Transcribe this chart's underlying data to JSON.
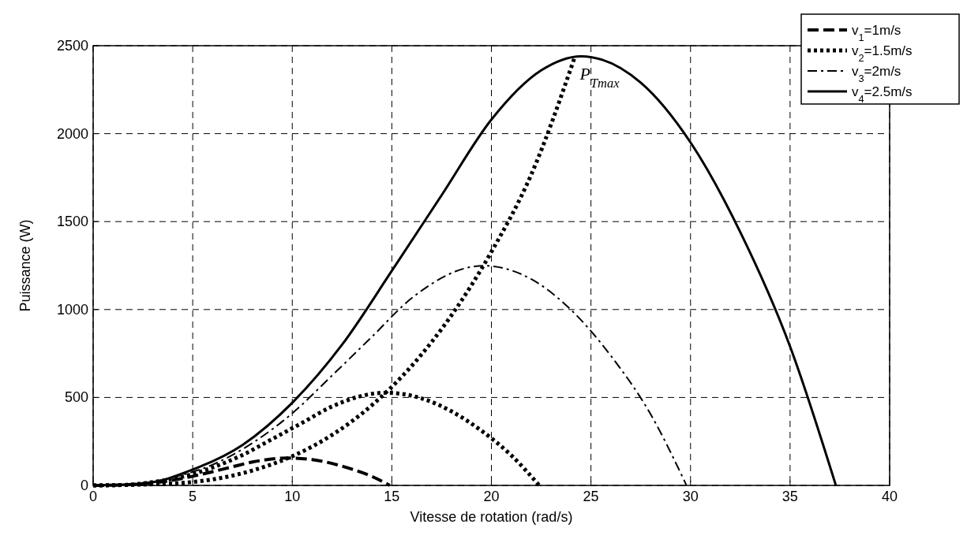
{
  "chart_data": {
    "type": "line",
    "xlabel": "Vitesse de rotation (rad/s)",
    "ylabel": "Puissance (W)",
    "xlim": [
      0,
      40
    ],
    "xticks": [
      0,
      5,
      10,
      15,
      20,
      25,
      30,
      35,
      40
    ],
    "ylim": [
      0,
      2500
    ],
    "yticks": [
      0,
      500,
      1000,
      1500,
      2000,
      2500
    ],
    "grid": true,
    "legend": "top right",
    "annotations": [
      {
        "text": "P$_{Tmax}$",
        "x": 24.2,
        "y": 2440
      }
    ],
    "series": [
      {
        "name": "v$_{1}$=1m/s",
        "color": "#000000",
        "line_style": "dashed",
        "x": [
          0,
          1,
          2,
          3,
          4,
          5,
          6,
          7,
          8,
          9.8,
          11,
          12,
          13,
          14,
          14.9
        ],
        "values": [
          0,
          1,
          6,
          15,
          30,
          52,
          78,
          106,
          133,
          156,
          147,
          125,
          92,
          51,
          0
        ]
      },
      {
        "name": "v$_{2}$=1.5m/s",
        "color": "#000000",
        "line_style": "dotted",
        "x": [
          0,
          1.5,
          3,
          4.5,
          6,
          7.5,
          9,
          10.5,
          12,
          14.7,
          16.5,
          18,
          19.5,
          21,
          22.4
        ],
        "values": [
          0,
          2,
          19,
          50,
          102,
          173,
          264,
          356,
          449,
          527,
          495,
          421,
          311,
          171,
          0
        ]
      },
      {
        "name": "v$_{3}$=2m/s",
        "color": "#000000",
        "line_style": "dashdot",
        "x": [
          0,
          2,
          4,
          6,
          8,
          10,
          12,
          14,
          16,
          19.6,
          22,
          24,
          26,
          28,
          29.8
        ],
        "values": [
          0,
          5,
          46,
          118,
          241,
          410,
          625,
          845,
          1065,
          1249,
          1173,
          998,
          737,
          404,
          0
        ]
      },
      {
        "name": "v$_{4}$=2.5m/s",
        "color": "#000000",
        "line_style": "solid",
        "x": [
          0,
          2.5,
          5,
          7.5,
          10,
          12.5,
          15,
          17.5,
          20,
          22.5,
          24.5,
          27.5,
          30,
          32.5,
          35,
          37.3
        ],
        "values": [
          0,
          10,
          90,
          230,
          470,
          800,
          1220,
          1650,
          2080,
          2360,
          2440,
          2290,
          1950,
          1440,
          790,
          0
        ]
      },
      {
        "color": "#000000",
        "line_style": "dotted",
        "x": [
          0,
          4,
          8,
          10,
          12,
          14,
          16,
          18,
          20,
          22,
          24.2
        ],
        "values": [
          0,
          11,
          85,
          166,
          287,
          456,
          680,
          968,
          1328,
          1767,
          2440
        ]
      }
    ]
  }
}
